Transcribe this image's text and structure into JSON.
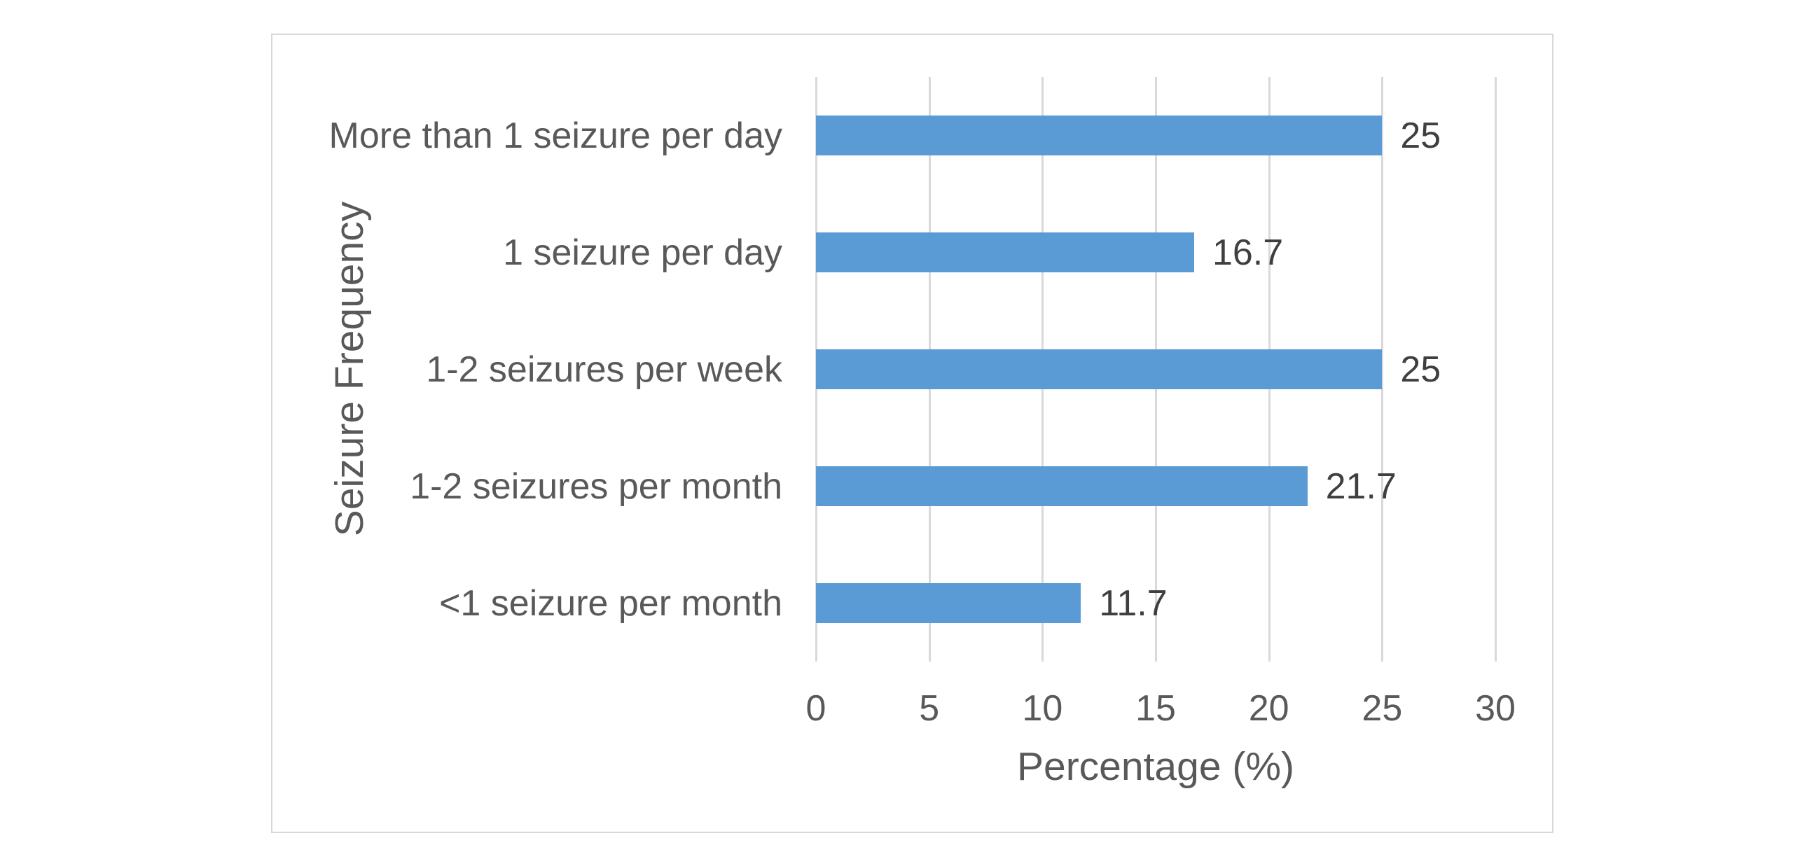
{
  "page": {
    "background": "#ffffff"
  },
  "chart_data": {
    "type": "bar",
    "orientation": "horizontal",
    "title": "",
    "xlabel": "Percentage (%)",
    "ylabel": "Seizure Frequency",
    "categories": [
      "More than 1 seizure per day",
      "1 seizure per day",
      "1-2 seizures per week",
      "1-2 seizures per month",
      "<1 seizure per month"
    ],
    "values": [
      25,
      16.7,
      25,
      21.7,
      11.7
    ],
    "data_labels": [
      "25",
      "16.7",
      "25",
      "21.7",
      "11.7"
    ],
    "xlim": [
      0,
      30
    ],
    "xticks": [
      0,
      5,
      10,
      15,
      20,
      25,
      30
    ],
    "grid": true,
    "legend": "none",
    "colors": {
      "bar_fill": "#5B9BD5",
      "gridline": "#D9D9D9",
      "frame_border": "#D7D7D7",
      "axis_text": "#595959",
      "data_label_text": "#3F3F3F",
      "background": "#FFFFFF"
    }
  }
}
